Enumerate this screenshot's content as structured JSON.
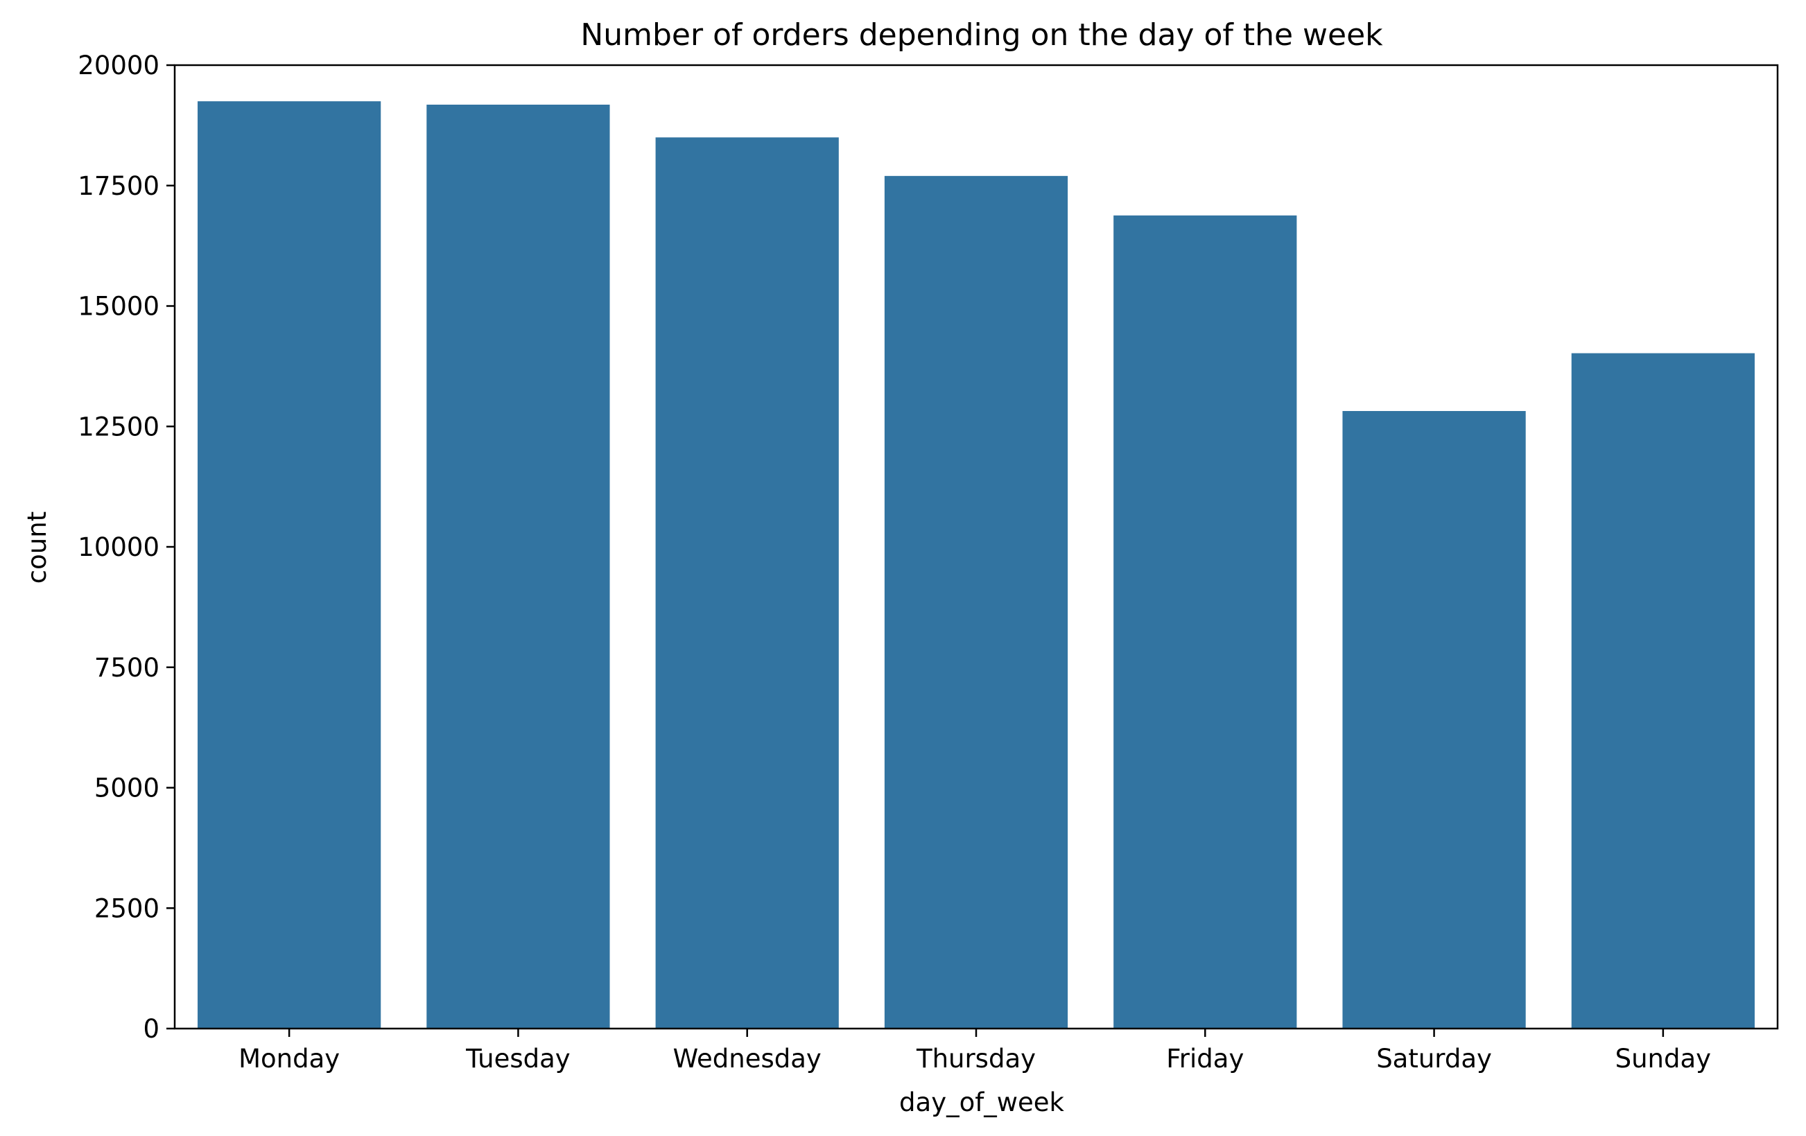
{
  "chart_data": {
    "type": "bar",
    "title": "Number of orders depending on the day of the week",
    "xlabel": "day_of_week",
    "ylabel": "count",
    "categories": [
      "Monday",
      "Tuesday",
      "Wednesday",
      "Thursday",
      "Friday",
      "Saturday",
      "Sunday"
    ],
    "values": [
      19250,
      19180,
      18500,
      17700,
      16880,
      12820,
      14020
    ],
    "ylim": [
      0,
      20000
    ],
    "yticks": [
      0,
      2500,
      5000,
      7500,
      10000,
      12500,
      15000,
      17500,
      20000
    ],
    "ytick_labels": [
      "0",
      "2500",
      "5000",
      "7500",
      "10000",
      "12500",
      "15000",
      "17500",
      "20000"
    ],
    "bar_color": "#3274a1",
    "grid": false,
    "legend": "none"
  }
}
